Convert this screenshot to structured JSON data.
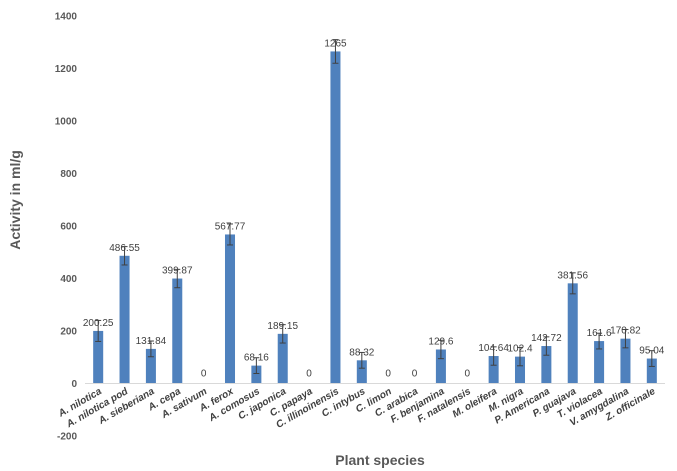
{
  "chart_data": {
    "type": "bar",
    "xlabel": "Plant species",
    "ylabel": "Activity in ml/g",
    "ylim": [
      -200,
      1400
    ],
    "yticks": [
      -200,
      0,
      200,
      400,
      600,
      800,
      1000,
      1200,
      1400
    ],
    "grid": false,
    "legend": "none",
    "bar_color": "#4f81bd",
    "error_bar_color": "#404040",
    "categories": [
      "A. nilotica",
      "A. nilotica pod",
      "A. sieberiana",
      "A. cepa",
      "A. sativum",
      "A. ferox",
      "A. comosus",
      "C. japonica",
      "C. papaya",
      "C. illinoinensis",
      "C. intybus",
      "C. limon",
      "C. arabica",
      "F. benjamina",
      "F. natalensis",
      "M. oleifera",
      "M. nigra",
      "P. Americana",
      "P. guajava",
      "T. violacea",
      "V. amygdalina",
      "Z. officinale"
    ],
    "values": [
      200.25,
      486.55,
      131.84,
      399.87,
      0,
      567.77,
      68.16,
      189.15,
      0,
      1265,
      88.32,
      0,
      0,
      129.6,
      0,
      104.64,
      102.4,
      142.72,
      381.56,
      161.6,
      170.82,
      95.04
    ],
    "value_labels": [
      "200.25",
      "486.55",
      "131.84",
      "399.87",
      "0",
      "567.77",
      "68.16",
      "189.15",
      "0",
      "1265",
      "88.32",
      "0",
      "0",
      "129.6",
      "0",
      "104.64",
      "102.4",
      "142.72",
      "381.56",
      "161.6",
      "170.82",
      "95.04"
    ],
    "errors": [
      40,
      35,
      30,
      35,
      0,
      40,
      30,
      35,
      0,
      45,
      30,
      0,
      0,
      35,
      0,
      35,
      35,
      35,
      40,
      30,
      35,
      30
    ]
  }
}
